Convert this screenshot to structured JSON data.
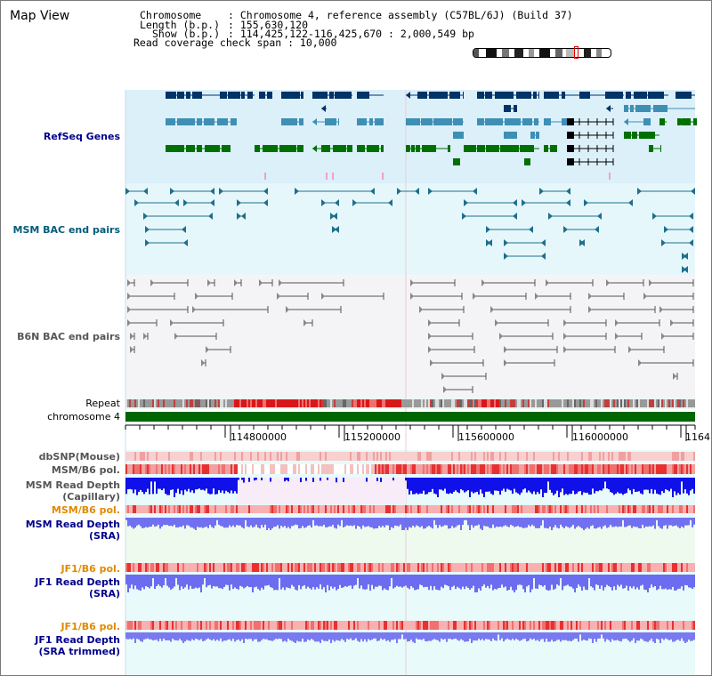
{
  "title": "Map View",
  "info": {
    "chromosome_key": "Chromosome",
    "chromosome_val": ": Chromosome 4, reference assembly (C57BL/6J) (Build 37)",
    "length_key": "Length (b.p.)",
    "length_val": ": 155,630,120",
    "show_key": "Show (b.p.)",
    "show_val": ": 114,425,122-116,425,670 : 2,000,549 bp",
    "coverage": "Read coverage check span : 10,000"
  },
  "tracks": {
    "refseq": "RefSeq Genes",
    "msm_bac": "MSM BAC end pairs",
    "b6n_bac": "B6N BAC end pairs",
    "repeat": "Repeat",
    "chromosome": "chromosome 4",
    "dbsnp": "dbSNP(Mouse)",
    "msm_b6_pol_1": "MSM/B6 pol.",
    "msm_depth_cap_1": "MSM Read Depth",
    "msm_depth_cap_2": "(Capillary)",
    "msm_b6_pol_2": "MSM/B6 pol.",
    "msm_depth_sra_1": "MSM Read Depth",
    "msm_depth_sra_2": "(SRA)",
    "jf1_b6_pol_1": "JF1/B6 pol.",
    "jf1_depth_sra_1": "JF1 Read Depth",
    "jf1_depth_sra_2": "(SRA)",
    "jf1_b6_pol_2": "JF1/B6 pol.",
    "jf1_depth_trim_1": "JF1 Read Depth",
    "jf1_depth_trim_2": "(SRA trimmed)"
  },
  "axis": {
    "ticks": [
      "114800000",
      "115200000",
      "115600000",
      "116000000",
      "1164"
    ]
  },
  "colors": {
    "navy_label": "#00008b",
    "teal_label": "#005c7a",
    "orange_label": "#e08a00",
    "gene_dark": "#003366",
    "gene_mid": "#3f8fb4",
    "gene_green": "#007000",
    "chromosome_bar": "#006600"
  }
}
